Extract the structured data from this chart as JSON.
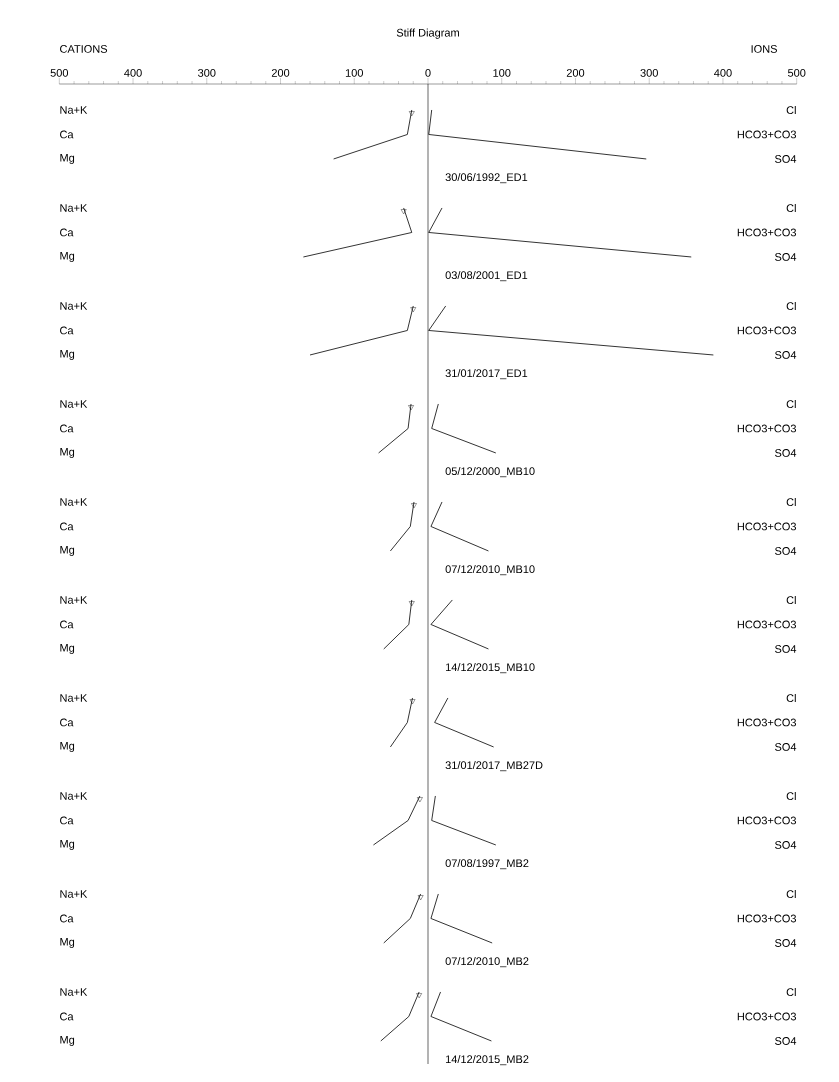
{
  "chart_data": [
    {
      "type": "line",
      "orientation": "horizontal",
      "title": "Stiff Diagram",
      "annotations": [
        "CATIONS",
        "IONS"
      ],
      "categories": [
        "Na+K",
        "Ca",
        "Mg"
      ],
      "y2_categories": [
        "Cl",
        "HCO3+CO3",
        "SO4"
      ],
      "xlabel": "30/06/1992_ED1",
      "xlim": [
        -500,
        500
      ],
      "xticks": [
        {
          "value": -500,
          "label": "500"
        },
        {
          "value": -480,
          "label": null
        },
        {
          "value": -460,
          "label": null
        },
        {
          "value": -440,
          "label": null
        },
        {
          "value": -420,
          "label": null
        },
        {
          "value": -400,
          "label": "400"
        },
        {
          "value": -380,
          "label": null
        },
        {
          "value": -360,
          "label": null
        },
        {
          "value": -340,
          "label": null
        },
        {
          "value": -320,
          "label": null
        },
        {
          "value": -300,
          "label": "300"
        },
        {
          "value": -280,
          "label": null
        },
        {
          "value": -260,
          "label": null
        },
        {
          "value": -240,
          "label": null
        },
        {
          "value": -220,
          "label": null
        },
        {
          "value": -200,
          "label": "200"
        },
        {
          "value": -180,
          "label": null
        },
        {
          "value": -160,
          "label": null
        },
        {
          "value": -140,
          "label": null
        },
        {
          "value": -120,
          "label": null
        },
        {
          "value": -100,
          "label": "100"
        },
        {
          "value": -80,
          "label": null
        },
        {
          "value": -60,
          "label": null
        },
        {
          "value": -40,
          "label": null
        },
        {
          "value": -20,
          "label": null
        },
        0,
        {
          "value": 20,
          "label": null
        },
        {
          "value": 40,
          "label": null
        },
        {
          "value": 60,
          "label": null
        },
        {
          "value": 80,
          "label": null
        },
        100,
        {
          "value": 120,
          "label": null
        },
        {
          "value": 140,
          "label": null
        },
        {
          "value": 160,
          "label": null
        },
        {
          "value": 180,
          "label": null
        },
        200,
        {
          "value": 220,
          "label": null
        },
        {
          "value": 240,
          "label": null
        },
        {
          "value": 260,
          "label": null
        },
        {
          "value": 280,
          "label": null
        },
        300,
        {
          "value": 320,
          "label": null
        },
        {
          "value": 340,
          "label": null
        },
        {
          "value": 360,
          "label": null
        },
        {
          "value": 380,
          "label": null
        },
        400,
        {
          "value": 420,
          "label": null
        },
        {
          "value": 440,
          "label": null
        },
        {
          "value": 460,
          "label": null
        },
        {
          "value": 480,
          "label": null
        },
        500
      ],
      "series": [
        {
          "color": "#000000",
          "values": [
            -22,
            -28,
            -128
          ]
        },
        {
          "color": "#000000",
          "values": [
            5,
            1,
            296
          ]
        },
        {
          "type": "scatter",
          "marker": "triangle",
          "color": "#000000",
          "values": [
            -22,
            null,
            null
          ]
        }
      ]
    },
    {
      "type": "line",
      "orientation": "horizontal",
      "tick_labels": "y",
      "categories": [
        "Na+K",
        "Ca",
        "Mg"
      ],
      "y2_categories": [
        "Cl",
        "HCO3+CO3",
        "SO4"
      ],
      "xlabel": "03/08/2001_ED1",
      "xlim": [
        -500,
        500
      ],
      "series": [
        {
          "color": "#000000",
          "values": [
            -33,
            -22,
            -169
          ]
        },
        {
          "color": "#000000",
          "values": [
            19,
            1,
            357
          ]
        },
        {
          "type": "scatter",
          "marker": "triangle",
          "color": "#000000",
          "values": [
            -33,
            null,
            null
          ]
        }
      ]
    },
    {
      "type": "line",
      "orientation": "horizontal",
      "tick_labels": "y",
      "categories": [
        "Na+K",
        "Ca",
        "Mg"
      ],
      "y2_categories": [
        "Cl",
        "HCO3+CO3",
        "SO4"
      ],
      "xlabel": "31/01/2017_ED1",
      "xlim": [
        -500,
        500
      ],
      "series": [
        {
          "color": "#000000",
          "values": [
            -20,
            -28,
            -160
          ]
        },
        {
          "color": "#000000",
          "values": [
            24,
            1,
            387
          ]
        },
        {
          "type": "scatter",
          "marker": "triangle",
          "color": "#000000",
          "values": [
            -20,
            null,
            null
          ]
        }
      ]
    },
    {
      "type": "line",
      "orientation": "horizontal",
      "tick_labels": "y",
      "categories": [
        "Na+K",
        "Ca",
        "Mg"
      ],
      "y2_categories": [
        "Cl",
        "HCO3+CO3",
        "SO4"
      ],
      "xlabel": "05/12/2000_MB10",
      "xlim": [
        -500,
        500
      ],
      "series": [
        {
          "color": "#000000",
          "values": [
            -23,
            -27,
            -67
          ]
        },
        {
          "color": "#000000",
          "values": [
            14,
            5,
            92
          ]
        },
        {
          "type": "scatter",
          "marker": "triangle",
          "color": "#000000",
          "values": [
            -23,
            null,
            null
          ]
        }
      ]
    },
    {
      "type": "line",
      "orientation": "horizontal",
      "tick_labels": "y",
      "categories": [
        "Na+K",
        "Ca",
        "Mg"
      ],
      "y2_categories": [
        "Cl",
        "HCO3+CO3",
        "SO4"
      ],
      "xlabel": "07/12/2010_MB10",
      "xlim": [
        -500,
        500
      ],
      "series": [
        {
          "color": "#000000",
          "values": [
            -19,
            -24,
            -51
          ]
        },
        {
          "color": "#000000",
          "values": [
            19,
            4,
            82
          ]
        },
        {
          "type": "scatter",
          "marker": "triangle",
          "color": "#000000",
          "values": [
            -19,
            null,
            null
          ]
        }
      ]
    },
    {
      "type": "line",
      "orientation": "horizontal",
      "tick_labels": "y",
      "categories": [
        "Na+K",
        "Ca",
        "Mg"
      ],
      "y2_categories": [
        "Cl",
        "HCO3+CO3",
        "SO4"
      ],
      "xlabel": "14/12/2015_MB10",
      "xlim": [
        -500,
        500
      ],
      "series": [
        {
          "color": "#000000",
          "values": [
            -22,
            -26,
            -60
          ]
        },
        {
          "color": "#000000",
          "values": [
            33,
            4,
            82
          ]
        },
        {
          "type": "scatter",
          "marker": "triangle",
          "color": "#000000",
          "values": [
            -22,
            null,
            null
          ]
        }
      ]
    },
    {
      "type": "line",
      "orientation": "horizontal",
      "tick_labels": "y",
      "categories": [
        "Na+K",
        "Ca",
        "Mg"
      ],
      "y2_categories": [
        "Cl",
        "HCO3+CO3",
        "SO4"
      ],
      "xlabel": "31/01/2017_MB27D",
      "xlim": [
        -500,
        500
      ],
      "series": [
        {
          "color": "#000000",
          "values": [
            -21,
            -28,
            -51
          ]
        },
        {
          "color": "#000000",
          "values": [
            27,
            9,
            89
          ]
        },
        {
          "type": "scatter",
          "marker": "triangle",
          "color": "#000000",
          "values": [
            -21,
            null,
            null
          ]
        }
      ]
    },
    {
      "type": "line",
      "orientation": "horizontal",
      "tick_labels": "y",
      "categories": [
        "Na+K",
        "Ca",
        "Mg"
      ],
      "y2_categories": [
        "Cl",
        "HCO3+CO3",
        "SO4"
      ],
      "xlabel": "07/08/1997_MB2",
      "xlim": [
        -500,
        500
      ],
      "series": [
        {
          "color": "#000000",
          "values": [
            -11,
            -27,
            -74
          ]
        },
        {
          "color": "#000000",
          "values": [
            10,
            5,
            92
          ]
        },
        {
          "type": "scatter",
          "marker": "triangle",
          "color": "#000000",
          "values": [
            -11,
            null,
            null
          ]
        }
      ]
    },
    {
      "type": "line",
      "orientation": "horizontal",
      "tick_labels": "y",
      "categories": [
        "Na+K",
        "Ca",
        "Mg"
      ],
      "y2_categories": [
        "Cl",
        "HCO3+CO3",
        "SO4"
      ],
      "xlabel": "07/12/2010_MB2",
      "xlim": [
        -500,
        500
      ],
      "series": [
        {
          "color": "#000000",
          "values": [
            -10,
            -24,
            -60
          ]
        },
        {
          "color": "#000000",
          "values": [
            14,
            4,
            87
          ]
        },
        {
          "type": "scatter",
          "marker": "triangle",
          "color": "#000000",
          "values": [
            -10,
            null,
            null
          ]
        }
      ]
    },
    {
      "type": "line",
      "orientation": "horizontal",
      "tick_labels": "y",
      "categories": [
        "Na+K",
        "Ca",
        "Mg"
      ],
      "y2_categories": [
        "Cl",
        "HCO3+CO3",
        "SO4"
      ],
      "xlabel": "14/12/2015_MB2",
      "xlim": [
        -500,
        500
      ],
      "series": [
        {
          "color": "#000000",
          "values": [
            -12,
            -26,
            -64
          ]
        },
        {
          "color": "#000000",
          "values": [
            17,
            4,
            86
          ]
        },
        {
          "type": "scatter",
          "marker": "triangle",
          "color": "#000000",
          "values": [
            -12,
            null,
            null
          ]
        }
      ]
    }
  ]
}
